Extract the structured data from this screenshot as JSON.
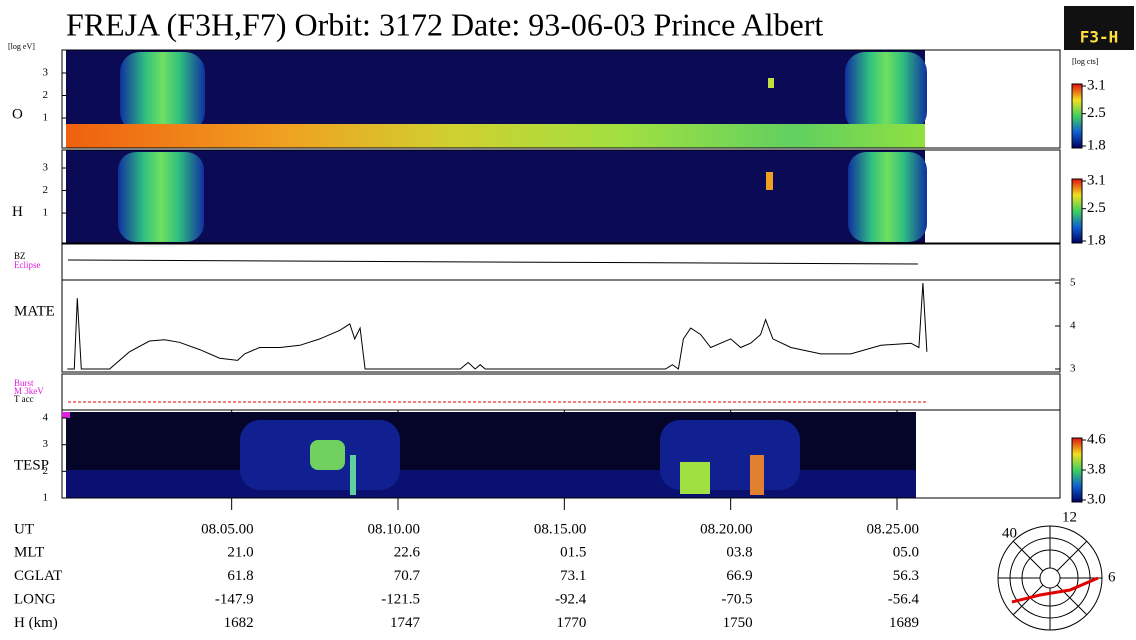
{
  "title": "FREJA (F3H,F7)  Orbit:  3172 Date: 93-06-03  Prince Albert",
  "logo": "F3-H",
  "energy_unit": "[log eV]",
  "count_unit": "[log cts]",
  "panels": {
    "o": {
      "label": "O",
      "ylim": [
        -0.33,
        4.02
      ],
      "yticks": [
        1,
        2,
        3
      ],
      "clim": [
        1.8,
        3.1
      ],
      "cticks": [
        3.1,
        2.5,
        1.8
      ]
    },
    "h": {
      "label": "H",
      "ylim": [
        -0.33,
        3.8
      ],
      "yticks": [
        1,
        2,
        3
      ],
      "clim": [
        1.8,
        3.1
      ],
      "cticks": [
        3.1,
        2.5,
        1.8
      ]
    },
    "bz": {
      "labels": [
        "BZ",
        "Eclipse"
      ]
    },
    "mate": {
      "label": "MATE",
      "ylim": [
        2.93,
        5.07
      ],
      "yticks": [
        3,
        4,
        5
      ],
      "x": [
        0.06,
        0.27,
        0.36,
        0.48,
        1.33,
        1.93,
        2.53,
        2.98,
        3.43,
        4.04,
        4.64,
        5.18,
        5.39,
        5.84,
        6.45,
        7.05,
        7.65,
        8.25,
        8.55,
        8.7,
        8.86,
        9.01,
        11.87,
        12.11,
        12.32,
        12.47,
        12.62,
        18.04,
        18.25,
        18.43,
        18.58,
        18.8,
        19.1,
        19.4,
        19.7,
        20.0,
        20.3,
        20.6,
        20.9,
        21.05,
        21.27,
        21.81,
        22.71,
        23.61,
        24.52,
        25.42,
        25.66,
        25.78,
        25.9
      ],
      "values": [
        3.0,
        3.0,
        4.65,
        3.0,
        3.0,
        3.4,
        3.65,
        3.68,
        3.62,
        3.45,
        3.25,
        3.2,
        3.35,
        3.5,
        3.5,
        3.55,
        3.7,
        3.9,
        4.05,
        3.7,
        3.95,
        3.0,
        3.0,
        3.15,
        3.0,
        3.1,
        3.0,
        3.0,
        3.1,
        3.0,
        3.7,
        3.95,
        3.8,
        3.5,
        3.6,
        3.7,
        3.5,
        3.6,
        3.8,
        4.15,
        3.7,
        3.5,
        3.35,
        3.35,
        3.55,
        3.6,
        3.5,
        5.0,
        3.4
      ]
    },
    "burst": {
      "labels": [
        "Burst",
        "M 3keV",
        "T acc"
      ]
    },
    "tesp": {
      "label": "TESP",
      "ylim": [
        1,
        4.3
      ],
      "yticks": [
        1,
        2,
        3,
        4
      ],
      "clim": [
        3,
        4.6
      ],
      "cticks": [
        4.6,
        3.8,
        {
          "value": 3,
          "label": "3.0"
        }
      ]
    }
  },
  "xlim": [
    -0.1,
    29.9
  ],
  "xticks": [
    {
      "value": 5,
      "label": "08.05.00"
    },
    {
      "value": 10,
      "label": "08.10.00"
    },
    {
      "value": 15,
      "label": "08.15.00"
    },
    {
      "value": 20,
      "label": "08.20.00"
    },
    {
      "value": 25,
      "label": "08.25.00"
    }
  ],
  "table": {
    "ut_label": "UT",
    "rows": [
      {
        "label": "MLT",
        "values": [
          "21.0",
          "22.6",
          "01.5",
          "03.8",
          "05.0"
        ]
      },
      {
        "label": "CGLAT",
        "values": [
          "61.8",
          "70.7",
          "73.1",
          "66.9",
          "56.3"
        ]
      },
      {
        "label": "LONG",
        "values": [
          "-147.9",
          "-121.5",
          "-92.4",
          "-70.5",
          "-56.4"
        ]
      },
      {
        "label": "H (km)",
        "values": [
          "1682",
          "1747",
          "1770",
          "1750",
          "1689"
        ]
      }
    ]
  },
  "polar": {
    "labels": [
      "12",
      "40",
      "6"
    ]
  }
}
